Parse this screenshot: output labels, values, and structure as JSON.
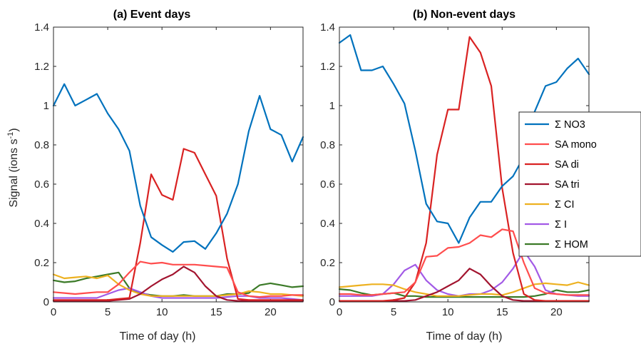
{
  "chart_data": [
    {
      "type": "line",
      "title": "(a) Event days",
      "xlabel": "Time of day (h)",
      "ylabel": "Signal (ions s",
      "ylabel_sup": "-1",
      "ylabel_close": ")",
      "xlim": [
        0,
        23
      ],
      "ylim": [
        0,
        1.4
      ],
      "xticks": [
        0,
        5,
        10,
        15,
        20
      ],
      "yticks": [
        0,
        0.2,
        0.4,
        0.6,
        0.8,
        1,
        1.2,
        1.4
      ],
      "grid": false,
      "x": [
        0,
        1,
        2,
        3,
        4,
        5,
        6,
        7,
        8,
        9,
        10,
        11,
        12,
        13,
        14,
        15,
        16,
        17,
        18,
        19,
        20,
        21,
        22,
        23
      ],
      "series": [
        {
          "name": "Σ NO3",
          "color": "#0072BD",
          "values": [
            1.0,
            1.11,
            1.0,
            1.03,
            1.06,
            0.96,
            0.88,
            0.77,
            0.49,
            0.33,
            0.29,
            0.255,
            0.305,
            0.31,
            0.27,
            0.35,
            0.45,
            0.6,
            0.87,
            1.05,
            0.88,
            0.85,
            0.715,
            0.84
          ]
        },
        {
          "name": "SA mono",
          "color": "#FF4D4D",
          "values": [
            0.05,
            0.045,
            0.04,
            0.045,
            0.05,
            0.05,
            0.09,
            0.15,
            0.205,
            0.195,
            0.2,
            0.19,
            0.19,
            0.19,
            0.185,
            0.18,
            0.175,
            0.05,
            0.03,
            0.025,
            0.03,
            0.03,
            0.035,
            0.035
          ]
        },
        {
          "name": "SA di",
          "color": "#D92222",
          "values": [
            0.01,
            0.01,
            0.01,
            0.01,
            0.01,
            0.01,
            0.015,
            0.02,
            0.3,
            0.65,
            0.545,
            0.52,
            0.78,
            0.76,
            0.65,
            0.54,
            0.22,
            0.015,
            0.01,
            0.01,
            0.01,
            0.01,
            0.01,
            0.01
          ]
        },
        {
          "name": "SA tri",
          "color": "#A2142F",
          "values": [
            0.005,
            0.005,
            0.005,
            0.005,
            0.005,
            0.005,
            0.01,
            0.015,
            0.04,
            0.08,
            0.115,
            0.14,
            0.18,
            0.15,
            0.08,
            0.03,
            0.01,
            0.005,
            0.005,
            0.005,
            0.005,
            0.005,
            0.005,
            0.005
          ]
        },
        {
          "name": "Σ CI",
          "color": "#EDB120",
          "values": [
            0.14,
            0.12,
            0.125,
            0.13,
            0.12,
            0.135,
            0.09,
            0.06,
            0.04,
            0.03,
            0.03,
            0.03,
            0.03,
            0.03,
            0.03,
            0.03,
            0.035,
            0.04,
            0.055,
            0.05,
            0.04,
            0.04,
            0.035,
            0.03
          ]
        },
        {
          "name": "Σ I",
          "color": "#A25AE6",
          "values": [
            0.02,
            0.02,
            0.02,
            0.02,
            0.02,
            0.04,
            0.06,
            0.07,
            0.05,
            0.03,
            0.02,
            0.02,
            0.02,
            0.02,
            0.02,
            0.02,
            0.025,
            0.03,
            0.03,
            0.02,
            0.02,
            0.02,
            0.015,
            0.01
          ]
        },
        {
          "name": "Σ HOM",
          "color": "#3B7A27",
          "values": [
            0.11,
            0.1,
            0.105,
            0.12,
            0.13,
            0.14,
            0.15,
            0.07,
            0.045,
            0.035,
            0.03,
            0.03,
            0.035,
            0.03,
            0.03,
            0.03,
            0.04,
            0.04,
            0.045,
            0.085,
            0.095,
            0.085,
            0.075,
            0.08
          ]
        }
      ]
    },
    {
      "type": "line",
      "title": "(b) Non-event days",
      "xlabel": "Time of day (h)",
      "xlim": [
        0,
        23
      ],
      "ylim": [
        0,
        1.4
      ],
      "xticks": [
        0,
        5,
        10,
        15,
        20
      ],
      "yticks": [
        0,
        0.2,
        0.4,
        0.6,
        0.8,
        1,
        1.2,
        1.4
      ],
      "grid": false,
      "legend": "right",
      "x": [
        0,
        1,
        2,
        3,
        4,
        5,
        6,
        7,
        8,
        9,
        10,
        11,
        12,
        13,
        14,
        15,
        16,
        17,
        18,
        19,
        20,
        21,
        22,
        23
      ],
      "series": [
        {
          "name": "Σ NO3",
          "color": "#0072BD",
          "values": [
            1.32,
            1.36,
            1.18,
            1.18,
            1.2,
            1.11,
            1.01,
            0.77,
            0.5,
            0.41,
            0.4,
            0.3,
            0.43,
            0.51,
            0.51,
            0.59,
            0.64,
            0.74,
            0.97,
            1.1,
            1.12,
            1.19,
            1.24,
            1.16
          ]
        },
        {
          "name": "SA mono",
          "color": "#FF4D4D",
          "values": [
            0.04,
            0.04,
            0.035,
            0.035,
            0.04,
            0.045,
            0.05,
            0.1,
            0.23,
            0.235,
            0.275,
            0.28,
            0.3,
            0.34,
            0.33,
            0.37,
            0.36,
            0.2,
            0.07,
            0.045,
            0.04,
            0.035,
            0.035,
            0.035
          ]
        },
        {
          "name": "SA di",
          "color": "#D92222",
          "values": [
            0.005,
            0.005,
            0.005,
            0.005,
            0.005,
            0.01,
            0.02,
            0.1,
            0.3,
            0.75,
            0.98,
            0.98,
            1.35,
            1.27,
            1.1,
            0.58,
            0.25,
            0.04,
            0.01,
            0.005,
            0.005,
            0.005,
            0.005,
            0.005
          ]
        },
        {
          "name": "SA tri",
          "color": "#A2142F",
          "values": [
            0.005,
            0.005,
            0.005,
            0.005,
            0.005,
            0.005,
            0.005,
            0.01,
            0.03,
            0.05,
            0.08,
            0.11,
            0.17,
            0.14,
            0.08,
            0.03,
            0.01,
            0.005,
            0.005,
            0.005,
            0.005,
            0.005,
            0.005,
            0.005
          ]
        },
        {
          "name": "Σ CI",
          "color": "#EDB120",
          "values": [
            0.075,
            0.08,
            0.085,
            0.09,
            0.09,
            0.085,
            0.065,
            0.05,
            0.04,
            0.03,
            0.03,
            0.03,
            0.035,
            0.04,
            0.04,
            0.035,
            0.05,
            0.07,
            0.09,
            0.095,
            0.09,
            0.085,
            0.1,
            0.085
          ]
        },
        {
          "name": "Σ I",
          "color": "#A25AE6",
          "values": [
            0.03,
            0.03,
            0.03,
            0.03,
            0.04,
            0.09,
            0.16,
            0.19,
            0.11,
            0.06,
            0.04,
            0.03,
            0.04,
            0.04,
            0.06,
            0.1,
            0.17,
            0.26,
            0.18,
            0.06,
            0.04,
            0.035,
            0.03,
            0.03
          ]
        },
        {
          "name": "Σ HOM",
          "color": "#3B7A27",
          "values": [
            0.065,
            0.06,
            0.045,
            0.035,
            0.04,
            0.045,
            0.03,
            0.03,
            0.025,
            0.025,
            0.025,
            0.025,
            0.025,
            0.025,
            0.025,
            0.025,
            0.025,
            0.025,
            0.03,
            0.04,
            0.06,
            0.05,
            0.05,
            0.06
          ]
        }
      ]
    }
  ]
}
